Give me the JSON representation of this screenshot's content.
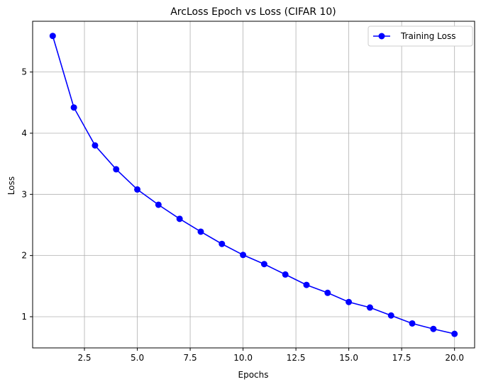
{
  "chart_data": {
    "type": "line",
    "title": "ArcLoss Epoch vs Loss (CIFAR 10)",
    "xlabel": "Epochs",
    "ylabel": "Loss",
    "xlim": [
      0.05,
      20.95
    ],
    "ylim": [
      0.49,
      5.83
    ],
    "xticks": [
      2.5,
      5.0,
      7.5,
      10.0,
      12.5,
      15.0,
      17.5,
      20.0
    ],
    "xtick_labels": [
      "2.5",
      "5.0",
      "7.5",
      "10.0",
      "12.5",
      "15.0",
      "17.5",
      "20.0"
    ],
    "yticks": [
      1,
      2,
      3,
      4,
      5
    ],
    "ytick_labels": [
      "1",
      "2",
      "3",
      "4",
      "5"
    ],
    "grid": true,
    "legend_position": "top-right",
    "x": [
      1,
      2,
      3,
      4,
      5,
      6,
      7,
      8,
      9,
      10,
      11,
      12,
      13,
      14,
      15,
      16,
      17,
      18,
      19,
      20
    ],
    "series": [
      {
        "name": "Training Loss",
        "color": "#0000ff",
        "marker": "circle",
        "values": [
          5.59,
          4.42,
          3.8,
          3.41,
          3.08,
          2.83,
          2.6,
          2.39,
          2.19,
          2.01,
          1.86,
          1.69,
          1.52,
          1.39,
          1.24,
          1.15,
          1.02,
          0.89,
          0.8,
          0.72
        ]
      }
    ]
  }
}
